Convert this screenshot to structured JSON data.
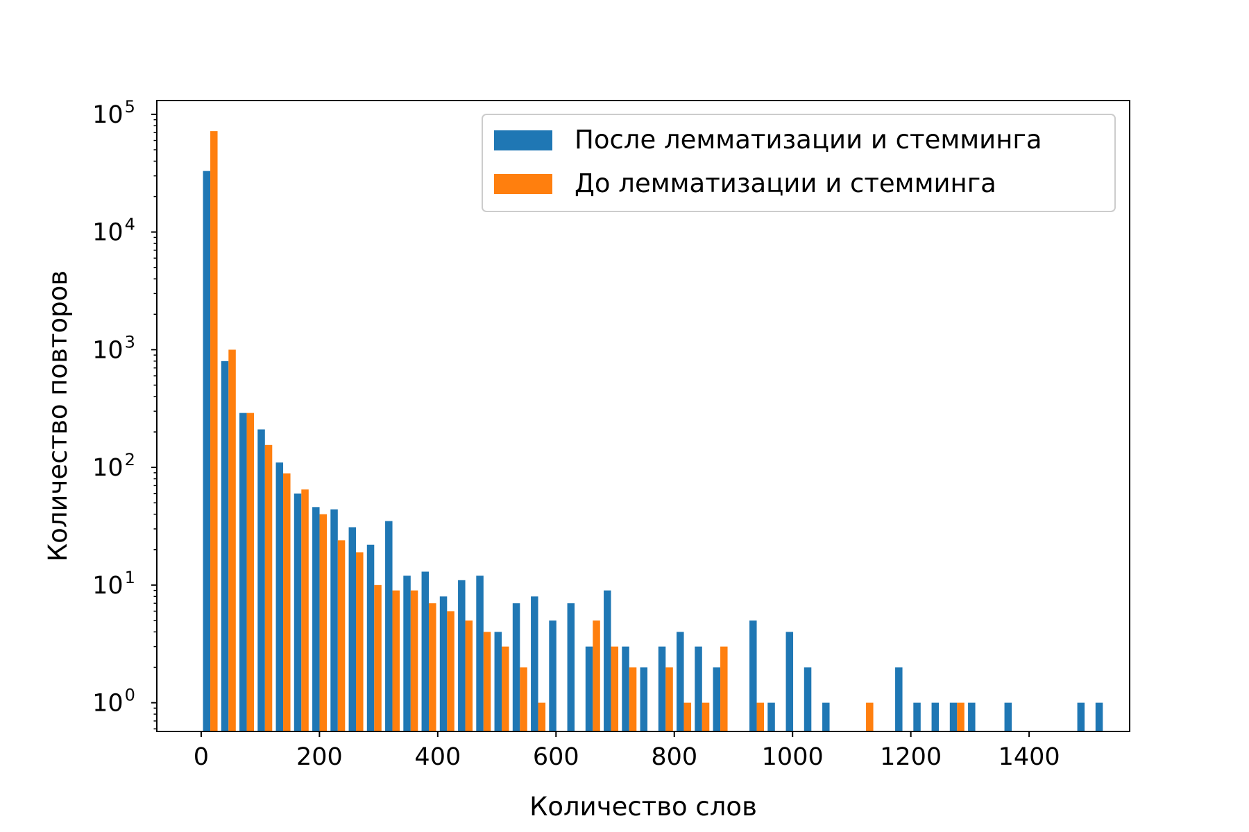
{
  "chart_data": {
    "type": "bar",
    "xlabel": "Количество слов",
    "ylabel": "Количество повторов",
    "yscale": "log",
    "ylim": [
      0.57,
      131000
    ],
    "xlim": [
      -75,
      1570
    ],
    "x_ticks": [
      "0",
      "200",
      "400",
      "600",
      "800",
      "1000",
      "1200",
      "1400"
    ],
    "x_tick_values": [
      0,
      200,
      400,
      600,
      800,
      1000,
      1200,
      1400
    ],
    "y_ticks": [
      {
        "base": "10",
        "exp": "0"
      },
      {
        "base": "10",
        "exp": "1"
      },
      {
        "base": "10",
        "exp": "2"
      },
      {
        "base": "10",
        "exp": "3"
      },
      {
        "base": "10",
        "exp": "4"
      },
      {
        "base": "10",
        "exp": "5"
      }
    ],
    "y_tick_values": [
      1,
      10,
      100,
      1000,
      10000,
      100000
    ],
    "legend_position": "top-right",
    "grid": false,
    "bin_start": 0,
    "bin_width": 30.8,
    "series": [
      {
        "name": "После лемматизации и стемминга",
        "color": "#1f77b4",
        "values": [
          33000,
          800,
          290,
          210,
          110,
          60,
          46,
          44,
          31,
          22,
          35,
          12,
          13,
          8,
          11,
          12,
          4,
          7,
          8,
          5,
          7,
          3,
          9,
          3,
          2,
          3,
          4,
          3,
          2,
          0,
          5,
          1,
          4,
          2,
          1,
          0,
          0,
          0,
          2,
          1,
          1,
          1,
          1,
          0,
          1,
          0,
          0,
          0,
          1,
          1
        ]
      },
      {
        "name": "До лемматизации и стемминга",
        "color": "#ff7f0e",
        "values": [
          72000,
          1000,
          290,
          155,
          89,
          65,
          40,
          24,
          19,
          10,
          9,
          9,
          7,
          6,
          5,
          4,
          3,
          2,
          1,
          0,
          0,
          5,
          3,
          2,
          0,
          2,
          1,
          1,
          3,
          0,
          1,
          0,
          0,
          0,
          0,
          0,
          1,
          0,
          0,
          0,
          0,
          1,
          0,
          0,
          0,
          0,
          0,
          0,
          0,
          0
        ]
      }
    ]
  }
}
